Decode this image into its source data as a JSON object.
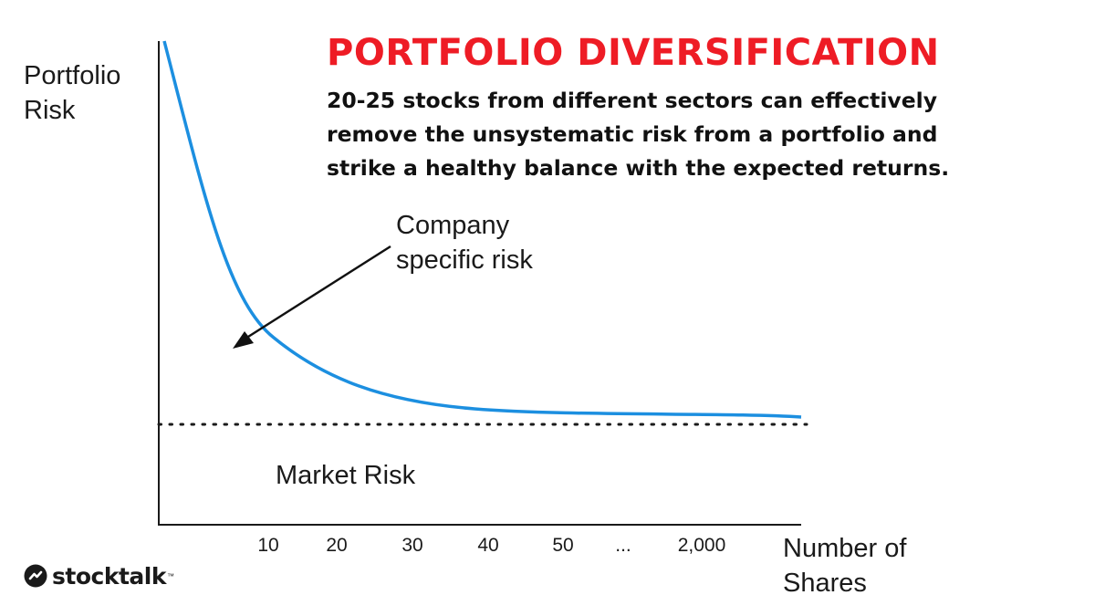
{
  "chart_data": {
    "type": "line",
    "title": "PORTFOLIO DIVERSIFICATION",
    "subtitle_lines": [
      "20-25 stocks from different sectors can effectively",
      "remove the unsystematic risk from a portfolio and",
      "strike a healthy balance with the expected returns."
    ],
    "ylabel_lines": [
      "Portfolio",
      "Risk"
    ],
    "xlabel_lines": [
      "Number of",
      "Shares"
    ],
    "x_ticks": [
      "10",
      "20",
      "30",
      "40",
      "50",
      "...",
      "2,000"
    ],
    "series": [
      {
        "color": "#1c8fe0",
        "shape": "exponential decay toward the market-risk level",
        "values": [
          {
            "x": 1,
            "y": 1.0
          },
          {
            "x": 10,
            "y": 0.27
          },
          {
            "x": 20,
            "y": 0.13
          },
          {
            "x": 30,
            "y": 0.06
          },
          {
            "x": 40,
            "y": 0.03
          },
          {
            "x": 50,
            "y": 0.02
          },
          {
            "x": "2,000",
            "y": 0.01
          }
        ]
      }
    ],
    "reference_line": {
      "label": "Market Risk",
      "style": "dotted",
      "y": 0
    },
    "annotations": [
      {
        "lines": [
          "Company",
          "specific risk"
        ],
        "arrow": true
      }
    ],
    "grid": false,
    "legend": "none"
  },
  "brand": {
    "name": "stocktalk",
    "tm": "™"
  },
  "colors": {
    "title": "#ee1c25",
    "curve": "#1c8fe0",
    "text": "#1a1a1a"
  }
}
